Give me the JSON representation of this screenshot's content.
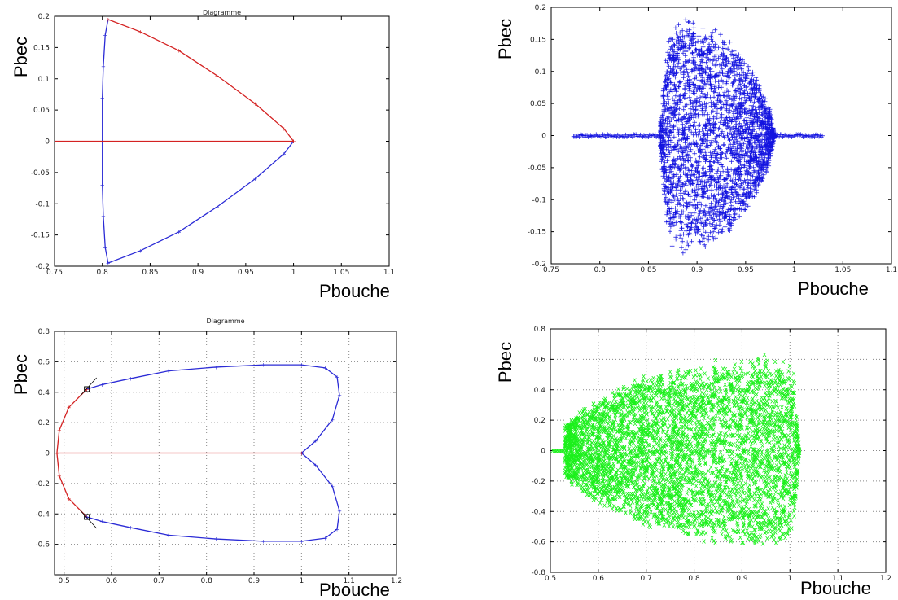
{
  "chart_data": [
    {
      "type": "line",
      "title": "Diagramme",
      "xlabel": "Pbouche",
      "ylabel": "Pbec",
      "xlim": [
        0.75,
        1.1
      ],
      "ylim": [
        -0.2,
        0.2
      ],
      "xticks": [
        "0.75",
        "0.8",
        "0.85",
        "0.9",
        "0.95",
        "1",
        "1.05",
        "1.1"
      ],
      "yticks": [
        "0.2",
        "0.15",
        "0.1",
        "0.05",
        "0",
        "-0.05",
        "-0.1",
        "-0.15",
        "-0.2"
      ],
      "grid": false,
      "colors": {
        "series_a": "#2b2bd6",
        "series_b": "#d42222"
      },
      "series": [
        {
          "x": [
            0.806,
            0.803,
            0.801,
            0.8,
            0.8,
            0.8,
            0.801,
            0.803,
            0.806,
            0.84,
            0.88,
            0.92,
            0.96,
            0.99,
            1.0
          ],
          "y": [
            0.195,
            0.17,
            0.12,
            0.07,
            0.0,
            -0.07,
            -0.12,
            -0.17,
            -0.195,
            -0.175,
            -0.145,
            -0.105,
            -0.06,
            -0.02,
            0.0
          ]
        },
        {
          "x": [
            1.0,
            0.99,
            0.96,
            0.92,
            0.88,
            0.84,
            0.806
          ],
          "y": [
            0.0,
            0.02,
            0.06,
            0.105,
            0.145,
            0.175,
            0.195
          ]
        },
        {
          "x": [
            0.75,
            1.0
          ],
          "y": [
            0,
            0
          ]
        }
      ]
    },
    {
      "type": "scatter",
      "xlabel": "Pbouche",
      "ylabel": "Pbec",
      "xlim": [
        0.75,
        1.1
      ],
      "ylim": [
        -0.2,
        0.2
      ],
      "xticks": [
        "0.75",
        "0.8",
        "0.85",
        "0.9",
        "0.95",
        "1",
        "1.05",
        "1.1"
      ],
      "yticks": [
        "0.2",
        "0.15",
        "0.1",
        "0.05",
        "0",
        "-0.05",
        "-0.1",
        "-0.15",
        "-0.2"
      ],
      "grid": false,
      "marker": "+",
      "color": "#1414e0",
      "envelope": {
        "x": [
          0.862,
          0.87,
          0.885,
          0.91,
          0.94,
          0.96,
          0.975,
          0.98
        ],
        "ymax": [
          0.02,
          0.17,
          0.19,
          0.18,
          0.145,
          0.1,
          0.045,
          0.0
        ]
      },
      "tails": [
        {
          "x": [
            0.773,
            0.862
          ],
          "y": 0
        },
        {
          "x": [
            0.98,
            1.03
          ],
          "y": 0
        }
      ]
    },
    {
      "type": "line",
      "title": "Diagramme",
      "xlabel": "Pbouche",
      "ylabel": "Pbec",
      "xlim": [
        0.48,
        1.2
      ],
      "ylim": [
        -0.8,
        0.8
      ],
      "xticks": [
        "0.5",
        "0.6",
        "0.7",
        "0.8",
        "0.9",
        "1",
        "1.1",
        "1.2"
      ],
      "yticks": [
        "0.8",
        "0.6",
        "0.4",
        "0.2",
        "0",
        "-0.2",
        "-0.4",
        "-0.6"
      ],
      "grid": true,
      "colors": {
        "series_a": "#2b2bd6",
        "series_b": "#d42222"
      },
      "series": [
        {
          "x": [
            1.0,
            1.03,
            1.065,
            1.08,
            1.075,
            1.05,
            1.0,
            0.92,
            0.82,
            0.72,
            0.64,
            0.58,
            0.548
          ],
          "y": [
            0.0,
            0.08,
            0.22,
            0.38,
            0.5,
            0.56,
            0.58,
            0.58,
            0.565,
            0.54,
            0.49,
            0.45,
            0.42
          ]
        },
        {
          "x": [
            0.548,
            0.51,
            0.49,
            0.485,
            0.49,
            0.51,
            0.548
          ],
          "y": [
            0.42,
            0.3,
            0.15,
            0.0,
            -0.15,
            -0.3,
            -0.42
          ]
        },
        {
          "x": [
            0.548,
            0.58,
            0.64,
            0.72,
            0.82,
            0.92,
            1.0,
            1.05,
            1.075,
            1.08,
            1.065,
            1.03,
            1.0
          ],
          "y": [
            -0.42,
            -0.45,
            -0.49,
            -0.54,
            -0.565,
            -0.58,
            -0.58,
            -0.56,
            -0.5,
            -0.38,
            -0.22,
            -0.08,
            0.0
          ]
        },
        {
          "x": [
            0.485,
            1.0
          ],
          "y": [
            0,
            0
          ]
        }
      ],
      "markers_square": [
        {
          "x": 0.548,
          "y": 0.42
        },
        {
          "x": 0.548,
          "y": -0.42
        }
      ]
    },
    {
      "type": "scatter",
      "xlabel": "Pbouche",
      "ylabel": "Pbec",
      "xlim": [
        0.5,
        1.2
      ],
      "ylim": [
        -0.8,
        0.8
      ],
      "xticks": [
        "0.5",
        "0.6",
        "0.7",
        "0.8",
        "0.9",
        "1",
        "1.1",
        "1.2"
      ],
      "yticks": [
        "0.8",
        "0.6",
        "0.4",
        "0.2",
        "0",
        "-0.2",
        "-0.4",
        "-0.6",
        "-0.8"
      ],
      "grid": true,
      "marker": "x",
      "color": "#1cf01c",
      "envelope": {
        "x": [
          0.53,
          0.55,
          0.6,
          0.65,
          0.7,
          0.8,
          0.9,
          0.95,
          0.99,
          1.01,
          1.02
        ],
        "ymax": [
          0.18,
          0.24,
          0.35,
          0.44,
          0.51,
          0.59,
          0.63,
          0.64,
          0.63,
          0.5,
          0.0
        ]
      },
      "tails": [
        {
          "x": [
            0.505,
            0.53
          ],
          "y": 0
        }
      ]
    }
  ]
}
